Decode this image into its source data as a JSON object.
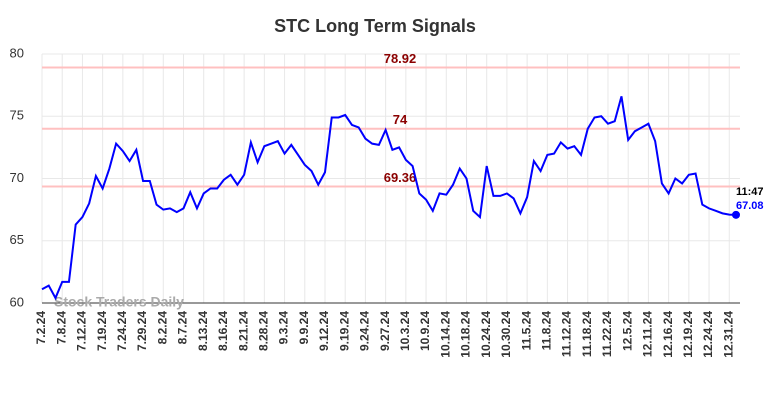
{
  "chart_data": {
    "type": "line",
    "title": "STC Long Term Signals",
    "categories": [
      "7.2.24",
      null,
      null,
      "7.8.24",
      null,
      null,
      "7.12.24",
      null,
      null,
      "7.19.24",
      null,
      null,
      "7.24.24",
      null,
      null,
      "7.29.24",
      null,
      null,
      "8.2.24",
      null,
      null,
      "8.7.24",
      null,
      null,
      "8.13.24",
      null,
      null,
      "8.16.24",
      null,
      null,
      "8.21.24",
      null,
      null,
      "8.28.24",
      null,
      null,
      "9.3.24",
      null,
      null,
      "9.9.24",
      null,
      null,
      "9.12.24",
      null,
      null,
      "9.19.24",
      null,
      null,
      "9.24.24",
      null,
      null,
      "9.27.24",
      null,
      null,
      "10.3.24",
      null,
      null,
      "10.9.24",
      null,
      null,
      "10.14.24",
      null,
      null,
      "10.18.24",
      null,
      null,
      "10.24.24",
      null,
      null,
      "10.30.24",
      null,
      null,
      "11.5.24",
      null,
      null,
      "11.8.24",
      null,
      null,
      "11.12.24",
      null,
      null,
      "11.18.24",
      null,
      null,
      "11.22.24",
      null,
      null,
      "12.5.24",
      null,
      null,
      "12.11.24",
      null,
      null,
      "12.16.24",
      null,
      null,
      "12.19.24",
      null,
      null,
      "12.24.24",
      null,
      null,
      "12.31.24",
      null
    ],
    "values": [
      61.1,
      61.4,
      60.4,
      61.7,
      61.7,
      66.3,
      66.9,
      68.0,
      70.2,
      69.2,
      70.8,
      72.8,
      72.2,
      71.4,
      72.3,
      69.8,
      69.8,
      67.9,
      67.5,
      67.6,
      67.3,
      67.6,
      68.9,
      67.6,
      68.8,
      69.2,
      69.2,
      69.9,
      70.3,
      69.5,
      70.3,
      72.9,
      71.3,
      72.6,
      72.8,
      73.0,
      72.0,
      72.7,
      71.9,
      71.1,
      70.6,
      69.5,
      70.5,
      74.9,
      74.9,
      75.1,
      74.3,
      74.1,
      73.2,
      72.8,
      72.7,
      73.9,
      72.3,
      72.5,
      71.5,
      71.0,
      68.8,
      68.3,
      67.4,
      68.8,
      68.7,
      69.5,
      70.8,
      70.0,
      67.4,
      66.9,
      71.0,
      68.6,
      68.6,
      68.8,
      68.4,
      67.2,
      68.5,
      71.4,
      70.6,
      71.9,
      72.0,
      72.9,
      72.4,
      72.6,
      71.9,
      74.0,
      74.9,
      75.0,
      74.4,
      74.6,
      76.6,
      73.1,
      73.8,
      74.1,
      74.4,
      73.0,
      69.6,
      68.8,
      70.0,
      69.6,
      70.3,
      70.4,
      67.9,
      67.6,
      67.4,
      67.2,
      67.1,
      67.08
    ],
    "color": "#0000ff",
    "ylim": [
      60,
      80
    ],
    "yticks": [
      60,
      65,
      70,
      75,
      80
    ],
    "grid": true,
    "hlines": [
      78.92,
      74,
      69.36
    ],
    "hline_color": "#ffc0c0",
    "hline_label_color": "#8b0000",
    "last_time": "11:47",
    "watermark": "Stock Traders Daily"
  }
}
